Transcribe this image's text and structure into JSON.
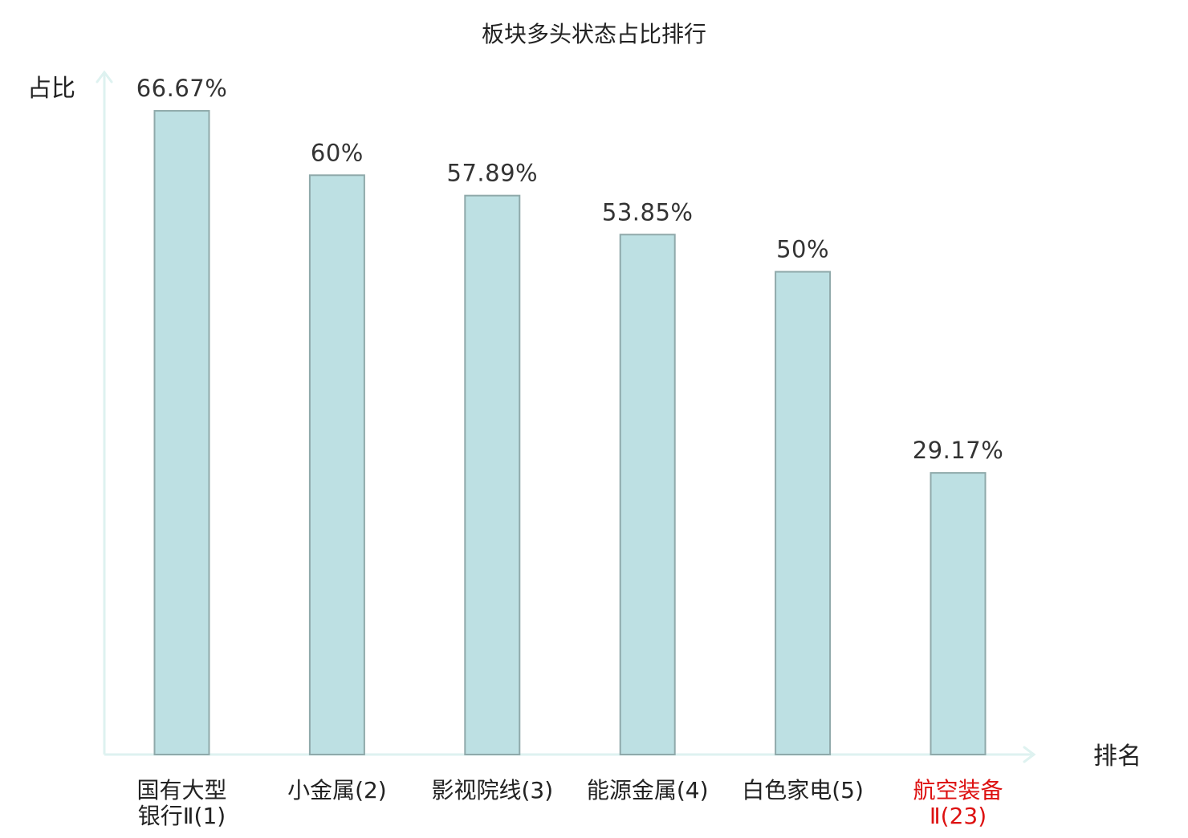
{
  "chart_data": {
    "type": "bar",
    "title": "板块多头状态占比排行",
    "ylabel": "占比",
    "xlabel": "排名",
    "categories": [
      [
        "国有大型",
        "银行Ⅱ(1)"
      ],
      [
        "小金属(2)"
      ],
      [
        "影视院线(3)"
      ],
      [
        "能源金属(4)"
      ],
      [
        "白色家电(5)"
      ],
      [
        "航空装备",
        "Ⅱ(23)"
      ]
    ],
    "values": [
      66.67,
      60,
      57.89,
      53.85,
      50,
      29.17
    ],
    "value_labels": [
      "66.67%",
      "60%",
      "57.89%",
      "53.85%",
      "50%",
      "29.17%"
    ],
    "highlight_category_index": 5,
    "ylim": [
      0,
      70
    ],
    "grid": false,
    "colors": {
      "bar_fill": "#bde0e3",
      "bar_stroke": "#8fa9aa",
      "axis": "#def2f0",
      "text": "#222222",
      "value_label": "#333333",
      "highlight": "#dd1111"
    }
  }
}
